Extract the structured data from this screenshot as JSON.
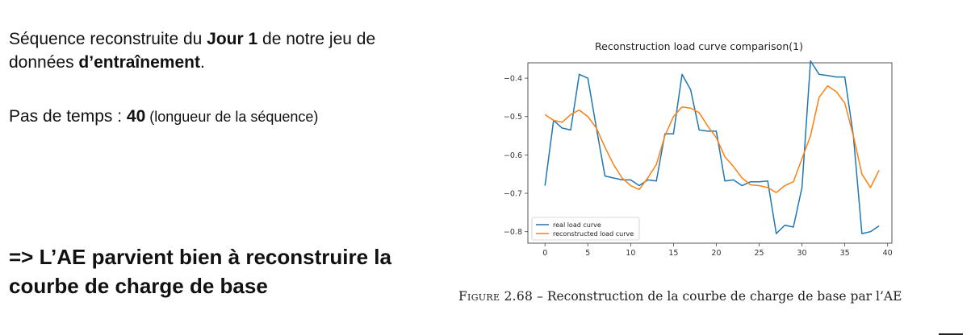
{
  "slide": {
    "p1": {
      "t1": "Séquence reconstruite du ",
      "b1": "Jour 1",
      "t2": " de notre jeu de données ",
      "b2": "d’entraînement",
      "t3": "."
    },
    "p2": {
      "t1": "Pas de temps : ",
      "b1": "40",
      "t2": " (longueur de la séquence)"
    },
    "conclusion": "=> L’AE parvient bien à reconstruire la courbe de charge de base",
    "caption": {
      "label": "Figure 2.68",
      "text": " – Reconstruction de la courbe de charge de base par l’AE"
    }
  },
  "chart_data": {
    "type": "line",
    "title": "Reconstruction load curve comparison(1)",
    "xlabel": "",
    "ylabel": "",
    "xlim": [
      -2,
      40.5
    ],
    "ylim": [
      -0.83,
      -0.36
    ],
    "xticks": [
      0,
      5,
      10,
      15,
      20,
      25,
      30,
      35,
      40
    ],
    "yticks": [
      -0.8,
      -0.7,
      -0.6,
      -0.5,
      -0.4
    ],
    "legend_position": "lower-left",
    "grid": false,
    "x": [
      0,
      1,
      2,
      3,
      4,
      5,
      6,
      7,
      8,
      9,
      10,
      11,
      12,
      13,
      14,
      15,
      16,
      17,
      18,
      19,
      20,
      21,
      22,
      23,
      24,
      25,
      26,
      27,
      28,
      29,
      30,
      31,
      32,
      33,
      34,
      35,
      36,
      37,
      38,
      39
    ],
    "series": [
      {
        "name": "real load curve",
        "color": "#1f77b4",
        "values": [
          -0.68,
          -0.51,
          -0.53,
          -0.535,
          -0.39,
          -0.4,
          -0.53,
          -0.655,
          -0.66,
          -0.665,
          -0.665,
          -0.68,
          -0.665,
          -0.668,
          -0.545,
          -0.545,
          -0.39,
          -0.43,
          -0.535,
          -0.538,
          -0.538,
          -0.668,
          -0.665,
          -0.68,
          -0.67,
          -0.67,
          -0.668,
          -0.805,
          -0.783,
          -0.788,
          -0.685,
          -0.355,
          -0.39,
          -0.393,
          -0.397,
          -0.397,
          -0.55,
          -0.805,
          -0.8,
          -0.785
        ]
      },
      {
        "name": "reconstructed load curve",
        "color": "#ff7f0e",
        "values": [
          -0.495,
          -0.51,
          -0.515,
          -0.495,
          -0.483,
          -0.5,
          -0.53,
          -0.58,
          -0.625,
          -0.66,
          -0.68,
          -0.69,
          -0.66,
          -0.625,
          -0.55,
          -0.5,
          -0.475,
          -0.478,
          -0.49,
          -0.525,
          -0.555,
          -0.605,
          -0.63,
          -0.66,
          -0.678,
          -0.68,
          -0.685,
          -0.698,
          -0.68,
          -0.67,
          -0.61,
          -0.55,
          -0.45,
          -0.42,
          -0.435,
          -0.465,
          -0.55,
          -0.65,
          -0.685,
          -0.64
        ]
      }
    ]
  }
}
